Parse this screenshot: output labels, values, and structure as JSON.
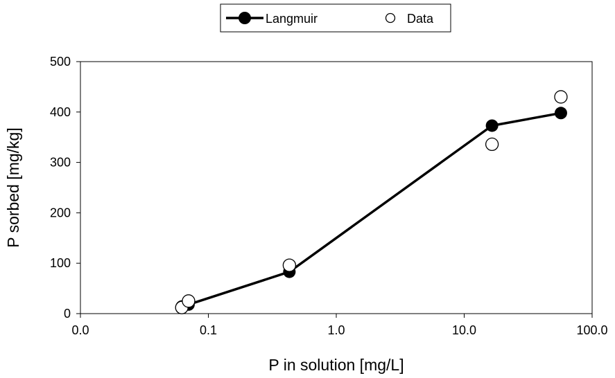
{
  "chart_data": {
    "type": "scatter",
    "xlabel": "P in solution [mg/L]",
    "ylabel": "P sorbed [mg/kg]",
    "x_scale": "log",
    "xlim": [
      0.01,
      100
    ],
    "ylim": [
      0,
      500
    ],
    "x_ticks": [
      0.01,
      0.1,
      1,
      10,
      100
    ],
    "x_tick_labels": [
      "0.0",
      "0.1",
      "1.0",
      "10.0",
      "100.0"
    ],
    "y_ticks": [
      0,
      100,
      200,
      300,
      400,
      500
    ],
    "y_tick_labels": [
      "0",
      "100",
      "200",
      "300",
      "400",
      "500"
    ],
    "grid": false,
    "legend_position": "top-center",
    "series": [
      {
        "name": "Langmuir",
        "style": "line-with-filled-markers",
        "color": "#000000",
        "x": [
          0.062,
          0.07,
          0.43,
          16.5,
          57
        ],
        "y": [
          14,
          18,
          83,
          373,
          398
        ]
      },
      {
        "name": "Data",
        "style": "open-circle-markers",
        "color": "#000000",
        "x": [
          0.062,
          0.07,
          0.43,
          16.5,
          57
        ],
        "y": [
          12,
          25,
          96,
          336,
          430
        ]
      }
    ]
  }
}
